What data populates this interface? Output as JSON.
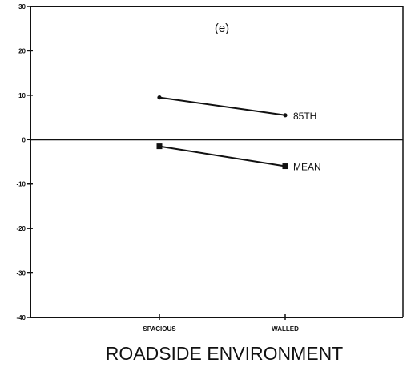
{
  "chart_data": {
    "type": "line",
    "panel_label": "(e)",
    "xlabel": "ROADSIDE ENVIRONMENT",
    "ylabel": "",
    "categories": [
      "SPACIOUS",
      "WALLED"
    ],
    "ylim": [
      -40,
      30
    ],
    "yticks": [
      30,
      20,
      10,
      0,
      -10,
      -20,
      -30,
      -40
    ],
    "ytick_labels": [
      "30",
      "20",
      "10",
      "0",
      "-10",
      "-20",
      "-30",
      "-40"
    ],
    "grid": false,
    "zero_line": true,
    "series": [
      {
        "name": "85TH",
        "values": [
          9.5,
          5.5
        ],
        "marker": "dot"
      },
      {
        "name": "MEAN",
        "values": [
          -1.5,
          -6
        ],
        "marker": "square"
      }
    ],
    "colors": {
      "line": "#111111",
      "axis": "#111111",
      "background": "#ffffff"
    }
  }
}
